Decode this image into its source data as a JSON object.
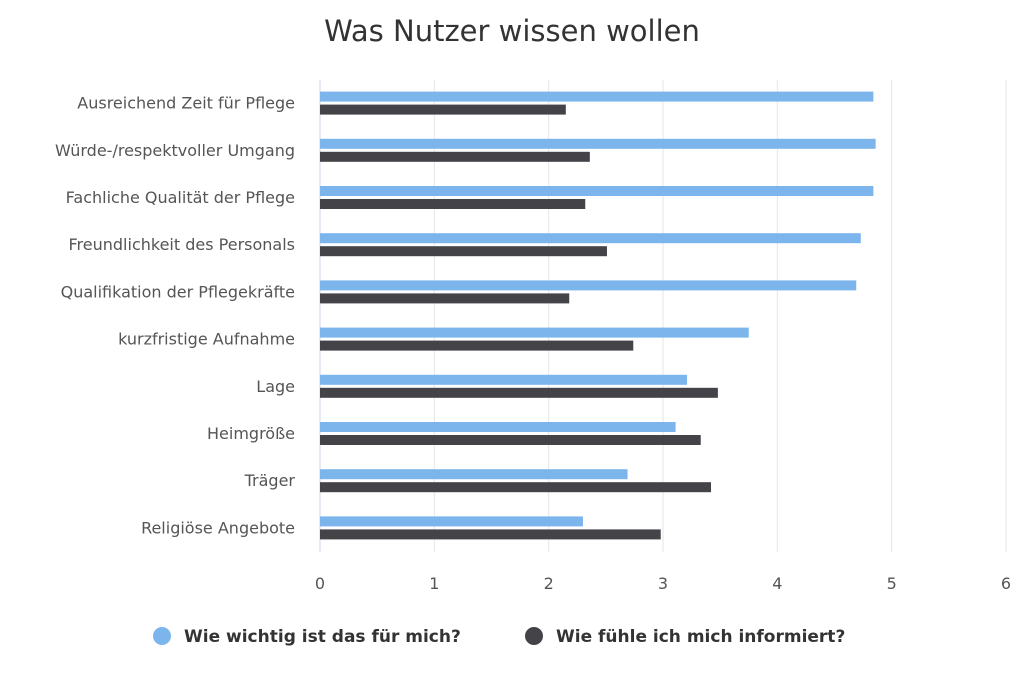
{
  "chart_data": {
    "type": "bar",
    "orientation": "horizontal",
    "title": "Was Nutzer wissen wollen",
    "categories": [
      "Ausreichend Zeit für Pflege",
      "Würde-/respektvoller Umgang",
      "Fachliche Qualität der Pflege",
      "Freundlichkeit des Personals",
      "Qualifikation der Pflegekräfte",
      "kurzfristige Aufnahme",
      "Lage",
      "Heimgröße",
      "Träger",
      "Religiöse Angebote"
    ],
    "series": [
      {
        "name": "Wie wichtig ist das für mich?",
        "color": "#7cb5ec",
        "values": [
          4.84,
          4.86,
          4.84,
          4.73,
          4.69,
          3.75,
          3.21,
          3.11,
          2.69,
          2.3
        ]
      },
      {
        "name": "Wie fühle ich mich informiert?",
        "color": "#434348",
        "values": [
          2.15,
          2.36,
          2.32,
          2.51,
          2.18,
          2.74,
          3.48,
          3.33,
          3.42,
          2.98
        ]
      }
    ],
    "xlim": [
      0,
      6
    ],
    "xticks": [
      "0",
      "1",
      "2",
      "3",
      "4",
      "5",
      "6"
    ],
    "grid": true,
    "legend": "bottom"
  }
}
